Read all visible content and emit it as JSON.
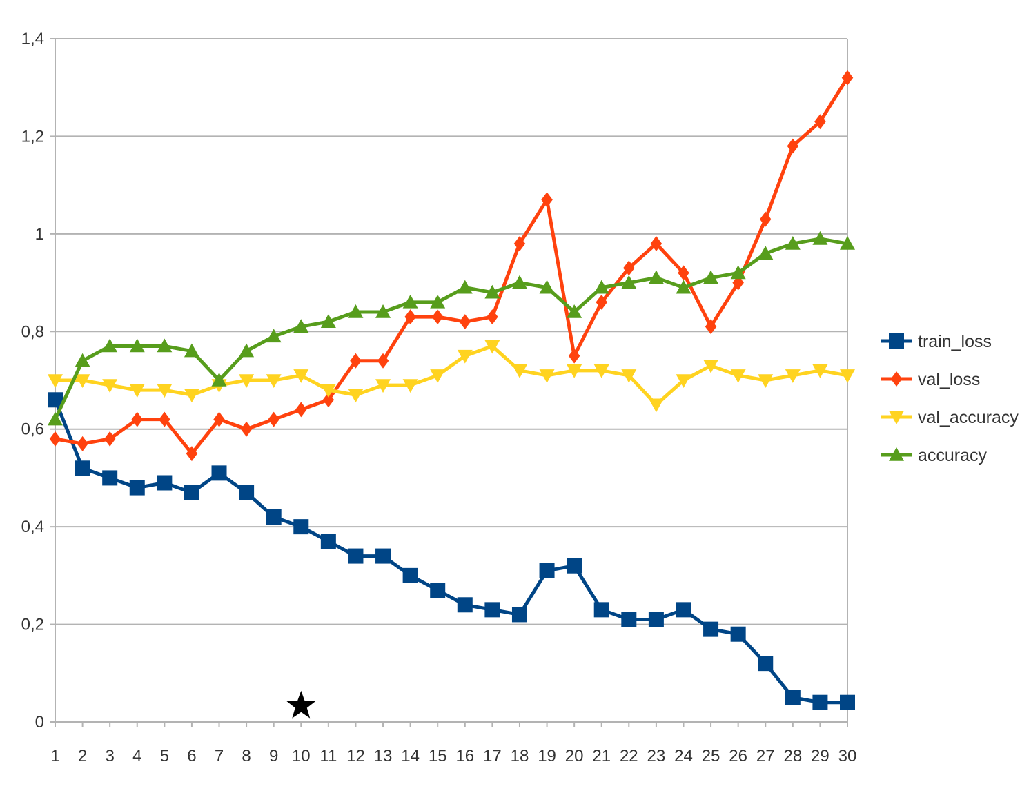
{
  "chart_data": {
    "type": "line",
    "title": "",
    "xlabel": "",
    "ylabel": "",
    "x": [
      1,
      2,
      3,
      4,
      5,
      6,
      7,
      8,
      9,
      10,
      11,
      12,
      13,
      14,
      15,
      16,
      17,
      18,
      19,
      20,
      21,
      22,
      23,
      24,
      25,
      26,
      27,
      28,
      29,
      30
    ],
    "ylim": [
      0,
      1.4
    ],
    "yticks": [
      0,
      0.2,
      0.4,
      0.6,
      0.8,
      1,
      1.2,
      1.4
    ],
    "ytick_labels": [
      "0",
      "0,2",
      "0,4",
      "0,6",
      "0,8",
      "1",
      "1,2",
      "1,4"
    ],
    "grid": "horizontal",
    "legend_position": "right",
    "series": [
      {
        "name": "train_loss",
        "color": "#004586",
        "marker": "square",
        "values": [
          0.66,
          0.52,
          0.5,
          0.48,
          0.49,
          0.47,
          0.51,
          0.47,
          0.42,
          0.4,
          0.37,
          0.34,
          0.34,
          0.3,
          0.27,
          0.24,
          0.23,
          0.22,
          0.31,
          0.32,
          0.23,
          0.21,
          0.21,
          0.23,
          0.19,
          0.18,
          0.12,
          0.05,
          0.04,
          0.04
        ]
      },
      {
        "name": "val_loss",
        "color": "#ff420e",
        "marker": "diamond",
        "values": [
          0.58,
          0.57,
          0.58,
          0.62,
          0.62,
          0.55,
          0.62,
          0.6,
          0.62,
          0.64,
          0.66,
          0.74,
          0.74,
          0.83,
          0.83,
          0.82,
          0.83,
          0.98,
          1.07,
          0.75,
          0.86,
          0.93,
          0.98,
          0.92,
          0.81,
          0.9,
          1.03,
          1.18,
          1.23,
          1.32
        ]
      },
      {
        "name": "val_accuracy",
        "color": "#ffd320",
        "marker": "triangle-down",
        "values": [
          0.7,
          0.7,
          0.69,
          0.68,
          0.68,
          0.67,
          0.69,
          0.7,
          0.7,
          0.71,
          0.68,
          0.67,
          0.69,
          0.69,
          0.71,
          0.75,
          0.77,
          0.72,
          0.71,
          0.72,
          0.72,
          0.71,
          0.65,
          0.7,
          0.73,
          0.71,
          0.7,
          0.71,
          0.72,
          0.71
        ]
      },
      {
        "name": "accuracy",
        "color": "#579d1c",
        "marker": "triangle-up",
        "values": [
          0.62,
          0.74,
          0.77,
          0.77,
          0.77,
          0.76,
          0.7,
          0.76,
          0.79,
          0.81,
          0.82,
          0.84,
          0.84,
          0.86,
          0.86,
          0.89,
          0.88,
          0.9,
          0.89,
          0.84,
          0.89,
          0.9,
          0.91,
          0.89,
          0.91,
          0.92,
          0.96,
          0.98,
          0.99,
          0.98
        ]
      }
    ],
    "annotations": [
      {
        "type": "marker",
        "symbol": "star",
        "x": 10,
        "y": 0.03,
        "color": "#000000"
      }
    ]
  }
}
